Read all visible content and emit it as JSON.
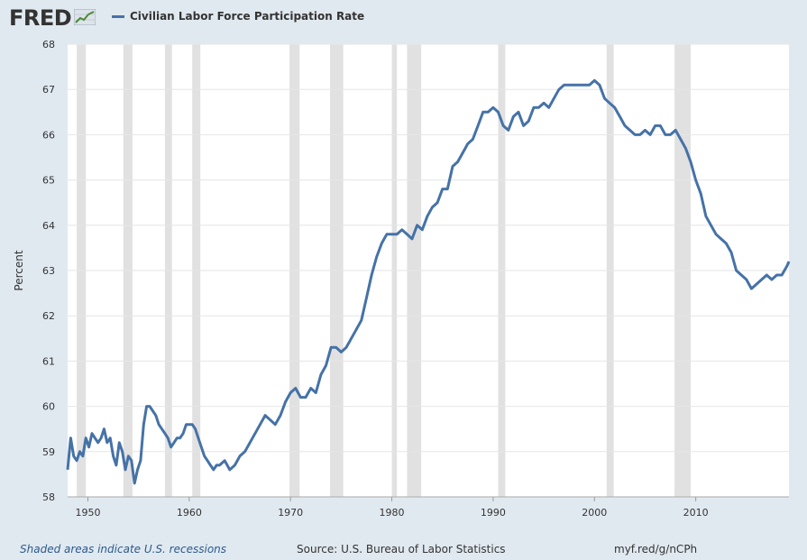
{
  "header": {
    "logo_text": "FRED",
    "logo_icon": "trend-line-icon"
  },
  "legend": {
    "label": "Civilian Labor Force Participation Rate",
    "color": "#4572a7"
  },
  "footer": {
    "recession_note": "Shaded areas indicate U.S. recessions",
    "source": "Source: U.S. Bureau of Labor Statistics",
    "url": "myf.red/g/nCPh"
  },
  "colors": {
    "background": "#e1e9f0",
    "plot_background": "#ffffff",
    "recession_band": "#e1e1e1",
    "series": "#4572a7"
  },
  "chart_data": {
    "type": "line",
    "title": "",
    "xlabel": "",
    "ylabel": "Percent",
    "xlim": [
      1948.0,
      2019.2
    ],
    "ylim": [
      58,
      68
    ],
    "yticks": [
      58,
      59,
      60,
      61,
      62,
      63,
      64,
      65,
      66,
      67,
      68
    ],
    "xticks": [
      1950,
      1960,
      1970,
      1980,
      1990,
      2000,
      2010
    ],
    "grid": true,
    "recessions": [
      [
        1948.9,
        1949.8
      ],
      [
        1953.5,
        1954.4
      ],
      [
        1957.6,
        1958.3
      ],
      [
        1960.3,
        1961.1
      ],
      [
        1969.9,
        1970.9
      ],
      [
        1973.9,
        1975.2
      ],
      [
        1980.0,
        1980.5
      ],
      [
        1981.5,
        1982.9
      ],
      [
        1990.5,
        1991.2
      ],
      [
        2001.2,
        2001.9
      ],
      [
        2007.9,
        2009.5
      ]
    ],
    "series": [
      {
        "name": "Civilian Labor Force Participation Rate",
        "x": [
          1948.0,
          1948.3,
          1948.6,
          1948.9,
          1949.2,
          1949.5,
          1949.8,
          1950.1,
          1950.4,
          1950.7,
          1951.0,
          1951.3,
          1951.6,
          1951.9,
          1952.2,
          1952.5,
          1952.8,
          1953.1,
          1953.4,
          1953.7,
          1954.0,
          1954.3,
          1954.6,
          1954.9,
          1955.2,
          1955.5,
          1955.8,
          1956.1,
          1956.4,
          1956.7,
          1957.0,
          1957.3,
          1957.6,
          1957.9,
          1958.2,
          1958.5,
          1958.8,
          1959.1,
          1959.4,
          1959.7,
          1960.0,
          1960.3,
          1960.6,
          1960.9,
          1961.2,
          1961.5,
          1961.8,
          1962.1,
          1962.4,
          1962.7,
          1963.0,
          1963.5,
          1964.0,
          1964.5,
          1965.0,
          1965.5,
          1966.0,
          1966.5,
          1967.0,
          1967.5,
          1968.0,
          1968.5,
          1969.0,
          1969.5,
          1970.0,
          1970.5,
          1971.0,
          1971.5,
          1972.0,
          1972.5,
          1973.0,
          1973.5,
          1974.0,
          1974.5,
          1975.0,
          1975.5,
          1976.0,
          1976.5,
          1977.0,
          1977.5,
          1978.0,
          1978.5,
          1979.0,
          1979.5,
          1980.0,
          1980.5,
          1981.0,
          1981.5,
          1982.0,
          1982.5,
          1983.0,
          1983.5,
          1984.0,
          1984.5,
          1985.0,
          1985.5,
          1986.0,
          1986.5,
          1987.0,
          1987.5,
          1988.0,
          1988.5,
          1989.0,
          1989.5,
          1990.0,
          1990.5,
          1991.0,
          1991.5,
          1992.0,
          1992.5,
          1993.0,
          1993.5,
          1994.0,
          1994.5,
          1995.0,
          1995.5,
          1996.0,
          1996.5,
          1997.0,
          1997.5,
          1998.0,
          1998.5,
          1999.0,
          1999.5,
          2000.0,
          2000.5,
          2001.0,
          2001.5,
          2002.0,
          2002.5,
          2003.0,
          2003.5,
          2004.0,
          2004.5,
          2005.0,
          2005.5,
          2006.0,
          2006.5,
          2007.0,
          2007.5,
          2008.0,
          2008.5,
          2009.0,
          2009.5,
          2010.0,
          2010.5,
          2011.0,
          2011.5,
          2012.0,
          2012.5,
          2013.0,
          2013.5,
          2014.0,
          2014.5,
          2015.0,
          2015.5,
          2016.0,
          2016.5,
          2017.0,
          2017.5,
          2018.0,
          2018.5,
          2019.0,
          2019.2
        ],
        "y": [
          58.6,
          59.3,
          58.9,
          58.8,
          59.0,
          58.9,
          59.3,
          59.1,
          59.4,
          59.3,
          59.2,
          59.3,
          59.5,
          59.2,
          59.3,
          58.9,
          58.7,
          59.2,
          59.0,
          58.6,
          58.9,
          58.8,
          58.3,
          58.6,
          58.8,
          59.6,
          60.0,
          60.0,
          59.9,
          59.8,
          59.6,
          59.5,
          59.4,
          59.3,
          59.1,
          59.2,
          59.3,
          59.3,
          59.4,
          59.6,
          59.6,
          59.6,
          59.5,
          59.3,
          59.1,
          58.9,
          58.8,
          58.7,
          58.6,
          58.7,
          58.7,
          58.8,
          58.6,
          58.7,
          58.9,
          59.0,
          59.2,
          59.4,
          59.6,
          59.8,
          59.7,
          59.6,
          59.8,
          60.1,
          60.3,
          60.4,
          60.2,
          60.2,
          60.4,
          60.3,
          60.7,
          60.9,
          61.3,
          61.3,
          61.2,
          61.3,
          61.5,
          61.7,
          61.9,
          62.4,
          62.9,
          63.3,
          63.6,
          63.8,
          63.8,
          63.8,
          63.9,
          63.8,
          63.7,
          64.0,
          63.9,
          64.2,
          64.4,
          64.5,
          64.8,
          64.8,
          65.3,
          65.4,
          65.6,
          65.8,
          65.9,
          66.2,
          66.5,
          66.5,
          66.6,
          66.5,
          66.2,
          66.1,
          66.4,
          66.5,
          66.2,
          66.3,
          66.6,
          66.6,
          66.7,
          66.6,
          66.8,
          67.0,
          67.1,
          67.1,
          67.1,
          67.1,
          67.1,
          67.1,
          67.2,
          67.1,
          66.8,
          66.7,
          66.6,
          66.4,
          66.2,
          66.1,
          66.0,
          66.0,
          66.1,
          66.0,
          66.2,
          66.2,
          66.0,
          66.0,
          66.1,
          65.9,
          65.7,
          65.4,
          65.0,
          64.7,
          64.2,
          64.0,
          63.8,
          63.7,
          63.6,
          63.4,
          63.0,
          62.9,
          62.8,
          62.6,
          62.7,
          62.8,
          62.9,
          62.8,
          62.9,
          62.9,
          63.1,
          63.2
        ]
      }
    ]
  }
}
